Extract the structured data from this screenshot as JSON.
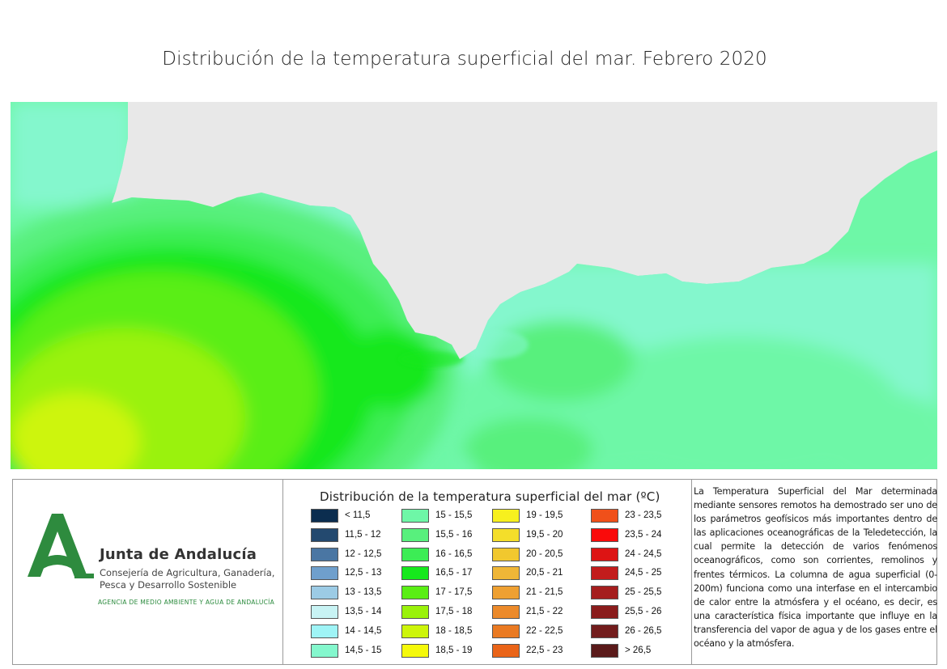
{
  "title": "Distribución de la temperatura superficial del mar. Febrero 2020",
  "logo": {
    "org_name": "Junta de Andalucía",
    "department_line1": "Consejería de Agricultura, Ganadería,",
    "department_line2": "Pesca y Desarrollo Sostenible",
    "agency": "AGENCIA DE MEDIO AMBIENTE Y AGUA DE ANDALUCÍA",
    "color": "#2e8b3e"
  },
  "map": {
    "land_color": "#e8e8e8",
    "icon": "sea-surface-temperature-map"
  },
  "legend": {
    "title": "Distribución de la temperatura superficial del mar (ºC)",
    "items": [
      {
        "label": "< 11,5",
        "color": "#0b2d4f"
      },
      {
        "label": "11,5 - 12",
        "color": "#23496f"
      },
      {
        "label": "12 - 12,5",
        "color": "#4a76a3"
      },
      {
        "label": "12,5 - 13",
        "color": "#6f9fcc"
      },
      {
        "label": "13 - 13,5",
        "color": "#9ccbe5"
      },
      {
        "label": "13,5 - 14",
        "color": "#c8f3f4"
      },
      {
        "label": "14 - 14,5",
        "color": "#9ff4f6"
      },
      {
        "label": "14,5 - 15",
        "color": "#84f7cd"
      },
      {
        "label": "15 - 15,5",
        "color": "#6ef7a7"
      },
      {
        "label": "15,5 - 16",
        "color": "#58f07d"
      },
      {
        "label": "16 - 16,5",
        "color": "#3ced55"
      },
      {
        "label": "16,5 - 17",
        "color": "#16e81c"
      },
      {
        "label": "17 - 17,5",
        "color": "#5aee14"
      },
      {
        "label": "17,5 - 18",
        "color": "#9af20a"
      },
      {
        "label": "18 - 18,5",
        "color": "#cdf50a"
      },
      {
        "label": "18,5 - 19",
        "color": "#f5f90a"
      },
      {
        "label": "19 - 19,5",
        "color": "#f7f01e"
      },
      {
        "label": "19,5 - 20",
        "color": "#f4de2a"
      },
      {
        "label": "20 - 20,5",
        "color": "#f1c82e"
      },
      {
        "label": "20,5 - 21",
        "color": "#efb637"
      },
      {
        "label": "21 - 21,5",
        "color": "#eea032"
      },
      {
        "label": "21,5 - 22",
        "color": "#ec8a2a"
      },
      {
        "label": "22 - 22,5",
        "color": "#ea7a22"
      },
      {
        "label": "22,5 - 23",
        "color": "#ea6418"
      },
      {
        "label": "23 - 23,5",
        "color": "#f0501a"
      },
      {
        "label": "23,5 - 24",
        "color": "#fa0a0a"
      },
      {
        "label": "24 - 24,5",
        "color": "#dd1414"
      },
      {
        "label": "24,5 - 25",
        "color": "#c21c1c"
      },
      {
        "label": "25 - 25,5",
        "color": "#a51e1e"
      },
      {
        "label": "25,5 - 26",
        "color": "#8a1c1c"
      },
      {
        "label": "26 - 26,5",
        "color": "#721c1c"
      },
      {
        "label": "> 26,5",
        "color": "#5a1a1a"
      }
    ]
  },
  "description": "La Temperatura Superficial del Mar determinada mediante sensores remotos ha demostrado ser uno de los parámetros geofísicos más importantes dentro de las aplicaciones oceanográficas de la Teledetección, la cual permite la detección de varios fenómenos oceanográficos, como son corrientes, remolinos y frentes térmicos. La columna de agua superficial (0-200m) funciona como una interfase en el intercambio de calor entre la atmósfera y el océano, es decir, es una característica física importante que influye en la transferencia del vapor de agua y de los gases entre el océano y la atmósfera."
}
